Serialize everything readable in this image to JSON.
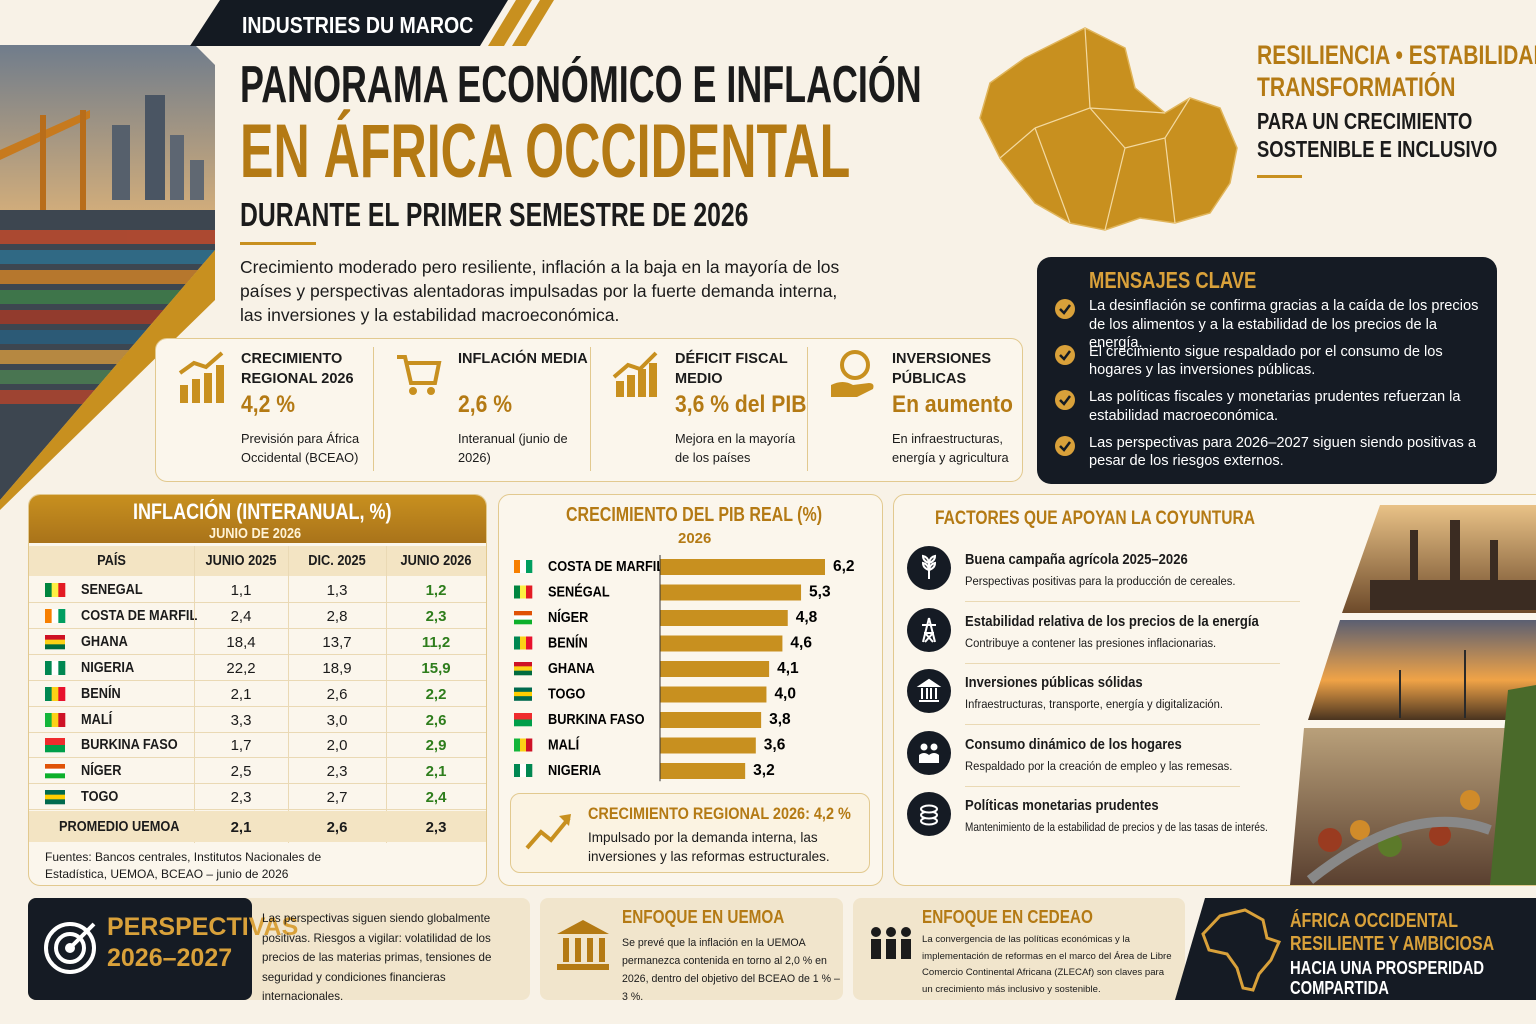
{
  "header": {
    "tag": "INDUSTRIES DU MAROC",
    "title_line1": "PANORAMA ECONÓMICO E INFLACIÓN",
    "title_line2": "EN ÁFRICA OCCIDENTAL",
    "subtitle": "DURANTE EL PRIMER SEMESTRE DE 2026",
    "intro": "Crecimiento moderado pero resiliente, inflación a la baja en la mayoría de los países y perspectivas alentadoras impulsadas por la fuerte demanda interna, las inversiones y la estabilidad macroeconómica."
  },
  "tagline": {
    "line1": "RESILIENCIA • ESTABILIDAD",
    "line2": "TRANSFORMATIÓN",
    "line3": "PARA UN CRECIMIENTO",
    "line4": "SOSTENIBLE E INCLUSIVO"
  },
  "kpis": [
    {
      "label": "CRECIMIENTO REGIONAL 2026",
      "value": "4,2 %",
      "note": "Previsión para África Occidental (BCEAO)"
    },
    {
      "label": "INFLACIÓN MEDIA",
      "value": "2,6 %",
      "note": "Interanual (junio de 2026)"
    },
    {
      "label": "DÉFICIT FISCAL MEDIO",
      "value": "3,6 % del PIB",
      "note": "Mejora en la mayoría de los países"
    },
    {
      "label": "INVERSIONES PÚBLICAS",
      "value": "En aumento",
      "note": "En infraestructuras, energía y agricultura"
    }
  ],
  "key_messages": {
    "title": "MENSAJES CLAVE",
    "items": [
      "La desinflación se confirma gracias a la caída de los precios de los alimentos y a la estabilidad de los precios de la energía.",
      "El crecimiento sigue respaldado por el consumo de los hogares y las inversiones públicas.",
      "Las políticas fiscales y monetarias prudentes refuerzan la estabilidad macroeconómica.",
      "Las perspectivas para 2026–2027 siguen siendo positivas a pesar de los riesgos externos."
    ]
  },
  "inflation_table": {
    "title": "INFLACIÓN (INTERANUAL, %)",
    "subtitle": "JUNIO DE 2026",
    "columns": [
      "PAÍS",
      "JUNIO 2025",
      "DIC. 2025",
      "JUNIO 2026"
    ],
    "rows": [
      [
        "SENEGAL",
        "1,1",
        "1,3",
        "1,2"
      ],
      [
        "COSTA DE MARFIL",
        "2,4",
        "2,8",
        "2,3"
      ],
      [
        "GHANA",
        "18,4",
        "13,7",
        "11,2"
      ],
      [
        "NIGERIA",
        "22,2",
        "18,9",
        "15,9"
      ],
      [
        "BENÍN",
        "2,1",
        "2,6",
        "2,2"
      ],
      [
        "MALÍ",
        "3,3",
        "3,0",
        "2,6"
      ],
      [
        "BURKINA FASO",
        "1,7",
        "2,0",
        "2,9"
      ],
      [
        "NÍGER",
        "2,5",
        "2,3",
        "2,1"
      ],
      [
        "TOGO",
        "2,3",
        "2,7",
        "2,4"
      ]
    ],
    "footer": [
      "PROMEDIO UEMOA",
      "2,1",
      "2,6",
      "2,3"
    ],
    "sources": "Fuentes: Bancos centrales, Institutos Nacionales de Estadística, UEMOA, BCEAO – junio de 2026"
  },
  "chart_data": {
    "type": "bar",
    "orientation": "horizontal",
    "title": "CRECIMIENTO DEL PIB REAL (%)",
    "subtitle": "2026",
    "categories": [
      "COSTA DE MARFIL",
      "SENÉGAL",
      "NÍGER",
      "BENÍN",
      "GHANA",
      "TOGO",
      "BURKINA FASO",
      "MALÍ",
      "NIGERIA"
    ],
    "values": [
      6.2,
      5.3,
      4.8,
      4.6,
      4.1,
      4.0,
      3.8,
      3.6,
      3.2
    ],
    "value_labels": [
      "6,2",
      "5,3",
      "4,8",
      "4,6",
      "4,1",
      "4,0",
      "3,8",
      "3,6",
      "3,2"
    ],
    "color": "#c8901f"
  },
  "growth_callout": {
    "title": "CRECIMIENTO REGIONAL 2026: 4,2 %",
    "text": "Impulsado por la demanda interna, las inversiones y las reformas estructurales."
  },
  "factors": {
    "title": "FACTORES QUE APOYAN LA COYUNTURA",
    "items": [
      {
        "title": "Buena campaña agrícola 2025–2026",
        "text": "Perspectivas positivas para la producción de cereales."
      },
      {
        "title": "Estabilidad relativa de los precios de la energía",
        "text": "Contribuye a contener las presiones inflacionarias."
      },
      {
        "title": "Inversiones públicas sólidas",
        "text": "Infraestructuras, transporte, energía y digitalización."
      },
      {
        "title": "Consumo dinámico de los hogares",
        "text": "Respaldado por la creación de empleo y las remesas."
      },
      {
        "title": "Políticas monetarias prudentes",
        "text": "Mantenimiento de la estabilidad de precios y de las tasas de interés."
      }
    ]
  },
  "footer": {
    "outlook": {
      "title": "PERSPECTIVAS 2026–2027",
      "text": "Las perspectivas siguen siendo globalmente positivas. Riesgos a vigilar: volatilidad de los precios de las materias primas, tensiones de seguridad y condiciones financieras internacionales."
    },
    "uemoa": {
      "title": "ENFOQUE EN UEMOA",
      "text": "Se prevé que la inflación en la UEMOA permanezca contenida en torno al 2,0 % en 2026, dentro del objetivo del BCEAO de 1 % – 3 %."
    },
    "cedeao": {
      "title": "ENFOQUE EN CEDEAO",
      "text": "La convergencia de las políticas económicas y la implementación de reformas en el marco del Área de Libre Comercio Continental Africana (ZLECAf) son claves para un crecimiento más inclusivo y sostenible."
    },
    "closing": {
      "line1": "ÁFRICA OCCIDENTAL RESILIENTE Y AMBICIOSA",
      "line2": "HACIA UNA PROSPERIDAD COMPARTIDA"
    }
  }
}
